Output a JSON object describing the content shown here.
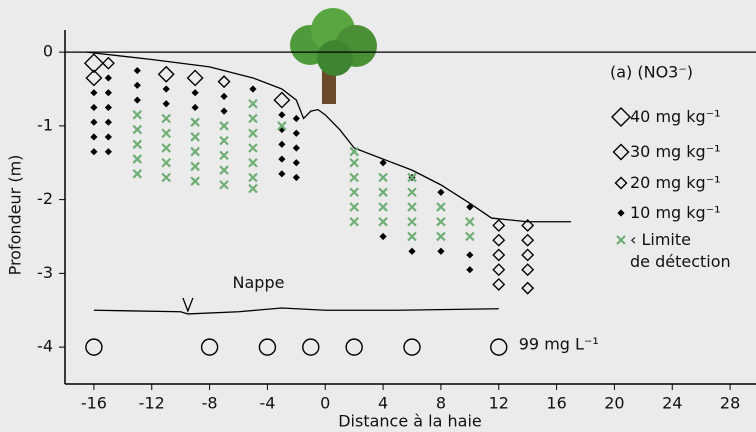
{
  "chart_data": {
    "type": "scatter",
    "title": "(a) (NO3⁻)",
    "x_label": "Distance à la haie",
    "y_label": "Profondeur (m)",
    "xlim": [
      -18,
      30
    ],
    "ylim": [
      -4.5,
      0.3
    ],
    "xticks": [
      -16,
      -12,
      -8,
      -4,
      0,
      4,
      8,
      12,
      16,
      20,
      24,
      28
    ],
    "yticks": [
      0,
      -1,
      -2,
      -3,
      -4
    ],
    "series": [
      {
        "name": "40 mg kg⁻¹",
        "marker": "diamond",
        "color": "#000000",
        "x": [
          -16
        ],
        "y": [
          -0.15
        ]
      },
      {
        "name": "30 mg kg⁻¹",
        "marker": "diamond",
        "color": "#000000",
        "x": [
          -16,
          -11,
          -9,
          -3
        ],
        "y": [
          -0.35,
          -0.3,
          -0.35,
          -0.65
        ]
      },
      {
        "name": "20 mg kg⁻¹",
        "marker": "diamond",
        "color": "#000000",
        "x": [
          -15,
          -7,
          12,
          12,
          12,
          12,
          12,
          14,
          14,
          14,
          14,
          14
        ],
        "y": [
          -0.15,
          -0.4,
          -2.35,
          -2.55,
          -2.75,
          -2.95,
          -3.15,
          -2.35,
          -2.55,
          -2.75,
          -2.95,
          -3.2
        ]
      },
      {
        "name": "10 mg kg⁻¹",
        "marker": "diamond",
        "color": "#000000",
        "x": [
          -16,
          -16,
          -16,
          -16,
          -16,
          -15,
          -15,
          -15,
          -15,
          -15,
          -15,
          -13,
          -13,
          -13,
          -11,
          -11,
          -9,
          -9,
          -7,
          -7,
          -5,
          -3,
          -3,
          -3,
          -3,
          -3,
          -2,
          -2,
          -2,
          -2,
          -2,
          4,
          4,
          6,
          6,
          8,
          8,
          10,
          10,
          10
        ],
        "y": [
          -0.55,
          -0.75,
          -0.95,
          -1.15,
          -1.35,
          -0.35,
          -0.55,
          -0.75,
          -0.95,
          -1.15,
          -1.35,
          -0.25,
          -0.45,
          -0.65,
          -0.5,
          -0.7,
          -0.55,
          -0.75,
          -0.6,
          -0.8,
          -0.5,
          -0.85,
          -1.05,
          -1.25,
          -1.45,
          -1.65,
          -0.9,
          -1.1,
          -1.3,
          -1.5,
          -1.7,
          -1.5,
          -2.5,
          -1.7,
          -2.7,
          -1.9,
          -2.7,
          -2.1,
          -2.75,
          -2.95
        ]
      },
      {
        "name": "‹ Limite\nde détection",
        "marker": "cross",
        "color": "#6fae75",
        "x": [
          -13,
          -13,
          -13,
          -13,
          -13,
          -11,
          -11,
          -11,
          -11,
          -11,
          -9,
          -9,
          -9,
          -9,
          -9,
          -7,
          -7,
          -7,
          -7,
          -7,
          -5,
          -5,
          -5,
          -5,
          -5,
          -5,
          -5,
          -3,
          2,
          2,
          2,
          2,
          2,
          2,
          4,
          4,
          4,
          4,
          6,
          6,
          6,
          6,
          6,
          8,
          8,
          8,
          10,
          10
        ],
        "y": [
          -0.85,
          -1.05,
          -1.25,
          -1.45,
          -1.65,
          -0.9,
          -1.1,
          -1.3,
          -1.5,
          -1.7,
          -0.95,
          -1.15,
          -1.35,
          -1.55,
          -1.75,
          -1.0,
          -1.2,
          -1.4,
          -1.6,
          -1.8,
          -0.7,
          -0.9,
          -1.1,
          -1.3,
          -1.5,
          -1.7,
          -1.85,
          -1.0,
          -1.35,
          -1.5,
          -1.7,
          -1.9,
          -2.1,
          -2.3,
          -1.7,
          -1.9,
          -2.1,
          -2.3,
          -1.7,
          -1.9,
          -2.1,
          -2.3,
          -2.5,
          -2.1,
          -2.3,
          -2.5,
          -2.3,
          -2.5
        ]
      },
      {
        "name": "99 mg L⁻¹",
        "marker": "circle",
        "color": "#000000",
        "x": [
          -16,
          -8,
          -4,
          -1,
          2,
          6,
          12
        ],
        "y": [
          -4,
          -4,
          -4,
          -4,
          -4,
          -4,
          -4
        ]
      }
    ],
    "surface": {
      "x": [
        -16.5,
        -12,
        -8,
        -5,
        -3,
        -2,
        -1.5,
        -1,
        -0.5,
        0,
        1,
        2,
        4,
        6,
        8,
        10,
        11.5,
        14,
        17
      ],
      "y": [
        0,
        -0.1,
        -0.2,
        -0.35,
        -0.5,
        -0.65,
        -0.9,
        -0.8,
        -0.78,
        -0.85,
        -1.05,
        -1.3,
        -1.45,
        -1.6,
        -1.8,
        -2.05,
        -2.25,
        -2.3,
        -2.3
      ]
    },
    "water_table": {
      "name": "Nappe",
      "x": [
        -16,
        -10,
        -9.5,
        -6,
        -3,
        0,
        5,
        12
      ],
      "y": [
        -3.5,
        -3.52,
        -3.55,
        -3.52,
        -3.47,
        -3.5,
        -3.5,
        -3.48
      ]
    }
  }
}
